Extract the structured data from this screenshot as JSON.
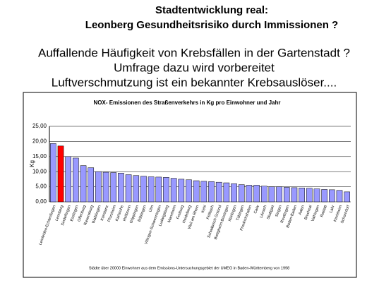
{
  "header": {
    "lines": [
      "Stadtentwicklung real:",
      "Leonberg Gesundheitsrisiko durch Immissionen ?"
    ]
  },
  "text": {
    "lines": [
      "Auffallende Häufigkeit von Krebsfällen in der Gartenstadt ?",
      "Umfrage dazu wird vorbereitet",
      "Luftverschmutzung ist ein bekannter Krebsauslöser...."
    ]
  },
  "chart_data": {
    "type": "bar",
    "title": "NOX- Emissionen des Straßenverkehrs in Kg pro Einwohner und Jahr",
    "y_label": "Kg",
    "footnote": "Städte über 20000 Einwohner aus dem Emissions-Untersuchungsgebiet der UMEG in Baden-Württemberg von 1998",
    "categories": [
      "Leinfelden-Echterdingen",
      "Leonberg",
      "Sindelfingen",
      "Esslingen",
      "Offenburg",
      "Ravensburg",
      "Waiblingen",
      "Konstanz",
      "Pforzheim",
      "Karlsruhe",
      "Heilbronn",
      "Göppingen",
      "Böblingen",
      "Ulm",
      "Villingen-Schwenningen",
      "Ludwigsburg",
      "Mannheim",
      "Freiburg",
      "Heidelberg",
      "Weil am Rhein",
      "Kehl",
      "Fellbach",
      "Schwäbisch Gmünd",
      "Bietigheim-Bissingen",
      "Nürtingen",
      "Tübingen",
      "Friedrichshafen",
      "Calw",
      "Lörrach",
      "Stuttgart",
      "Singen",
      "Reutlingen",
      "Baden-Baden",
      "Aalen",
      "Bruchsal",
      "Vaihingen",
      "Rastatt",
      "Lahr",
      "Kirchheim",
      "Schorndorf"
    ],
    "values": [
      19.3,
      18.5,
      15,
      14.5,
      12,
      11.3,
      10,
      9.8,
      9.7,
      9.5,
      9,
      8.7,
      8.5,
      8.3,
      8.2,
      8.1,
      7.8,
      7.5,
      7.3,
      7,
      6.8,
      6.7,
      6.5,
      6.3,
      6,
      5.7,
      5.5,
      5.5,
      5.2,
      5,
      5,
      4.8,
      4.7,
      4.6,
      4.5,
      4.3,
      4.1,
      4,
      3.8,
      3.3
    ],
    "color": "#9999ff",
    "highlight_index": 1,
    "highlight_color": "#ff0000",
    "ylim": [
      0,
      25
    ],
    "yticks": [
      {
        "value": 0,
        "label": "0,00"
      },
      {
        "value": 5,
        "label": "5,00"
      },
      {
        "value": 10,
        "label": "10,00"
      },
      {
        "value": 15,
        "label": "15,00"
      },
      {
        "value": 20,
        "label": "20,00"
      },
      {
        "value": 25,
        "label": "25,00"
      }
    ],
    "grid": true
  }
}
